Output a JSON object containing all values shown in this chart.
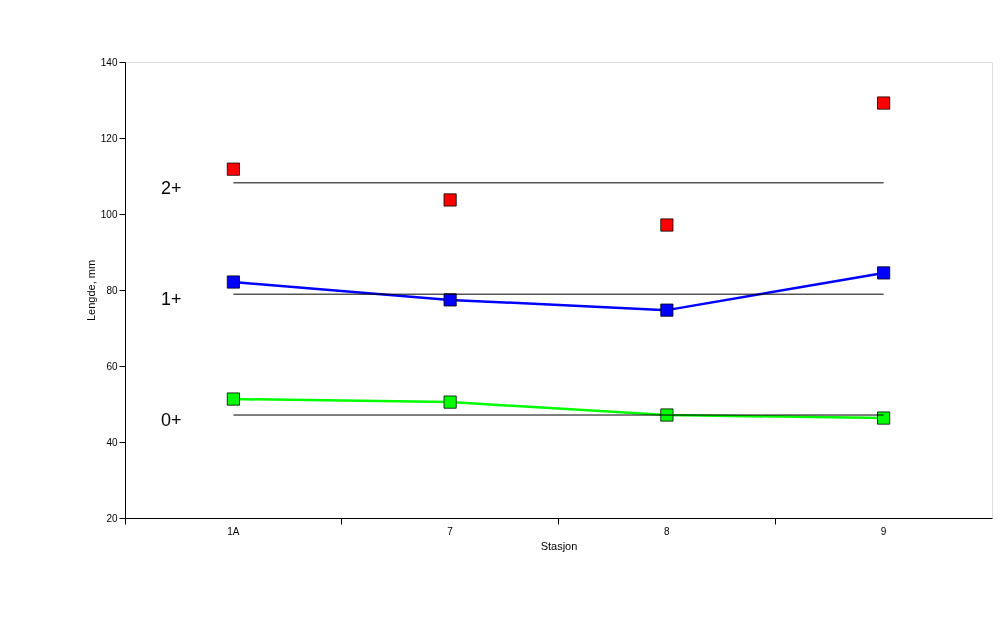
{
  "chart_data": {
    "type": "line",
    "xlabel": "Stasjon",
    "ylabel": "Lengde, mm",
    "categories": [
      "1A",
      "7",
      "8",
      "9"
    ],
    "ylim": [
      20,
      140
    ],
    "yticks": [
      20,
      40,
      60,
      80,
      100,
      120,
      140
    ],
    "marker": "square",
    "grid": false,
    "series": [
      {
        "type": "scatter",
        "color": "#ff0000",
        "values": [
          111.8,
          103.7,
          97.1,
          129.2
        ]
      },
      {
        "color": "#0000ff",
        "values": [
          82.1,
          77.4,
          74.7,
          84.5
        ]
      },
      {
        "color": "#00ff00",
        "values": [
          51.3,
          50.5,
          47.1,
          46.3
        ]
      }
    ],
    "ref_lines": [
      {
        "axis": "y",
        "value": 108.2,
        "color": "#000000"
      },
      {
        "axis": "y",
        "value": 78.9,
        "color": "#000000"
      },
      {
        "axis": "y",
        "value": 47.1,
        "color": "#000000"
      }
    ],
    "annotations": [
      "2+",
      "1+",
      "0+"
    ]
  }
}
